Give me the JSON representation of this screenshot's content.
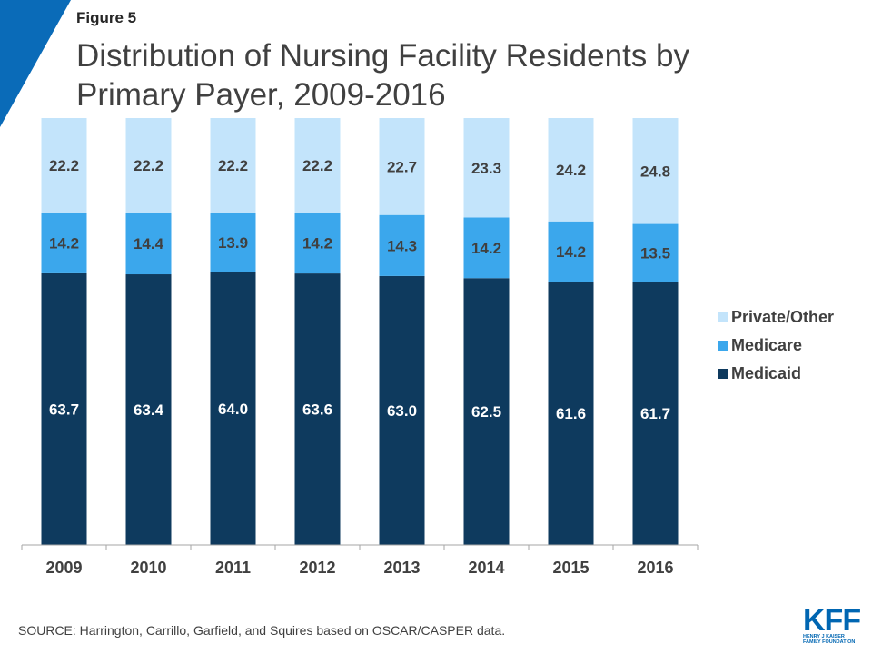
{
  "header": {
    "figure_label": "Figure 5",
    "title": "Distribution of Nursing Facility Residents by Primary Payer, 2009-2016"
  },
  "footer": {
    "source": "SOURCE: Harrington,  Carrillo, Garfield, and Squires based on OSCAR/CASPER data.",
    "logo_text": "KFF",
    "logo_subtext_line1": "HENRY J KAISER",
    "logo_subtext_line2": "FAMILY FOUNDATION"
  },
  "colors": {
    "medicaid": "#0e3a5e",
    "medicare": "#3ba7ec",
    "private_other": "#c3e4fb",
    "accent": "#0a6bb8"
  },
  "chart_data": {
    "type": "bar",
    "stacked": true,
    "categories": [
      "2009",
      "2010",
      "2011",
      "2012",
      "2013",
      "2014",
      "2015",
      "2016"
    ],
    "series": [
      {
        "name": "Medicaid",
        "values": [
          63.7,
          63.4,
          64.0,
          63.6,
          63.0,
          62.5,
          61.6,
          61.7
        ]
      },
      {
        "name": "Medicare",
        "values": [
          14.2,
          14.4,
          13.9,
          14.2,
          14.3,
          14.2,
          14.2,
          13.5
        ]
      },
      {
        "name": "Private/Other",
        "values": [
          22.2,
          22.2,
          22.2,
          22.2,
          22.7,
          23.3,
          24.2,
          24.8
        ]
      }
    ],
    "ylim": [
      0,
      100
    ],
    "legend_position": "right",
    "legend_order": [
      "Private/Other",
      "Medicare",
      "Medicaid"
    ],
    "grid": false
  }
}
